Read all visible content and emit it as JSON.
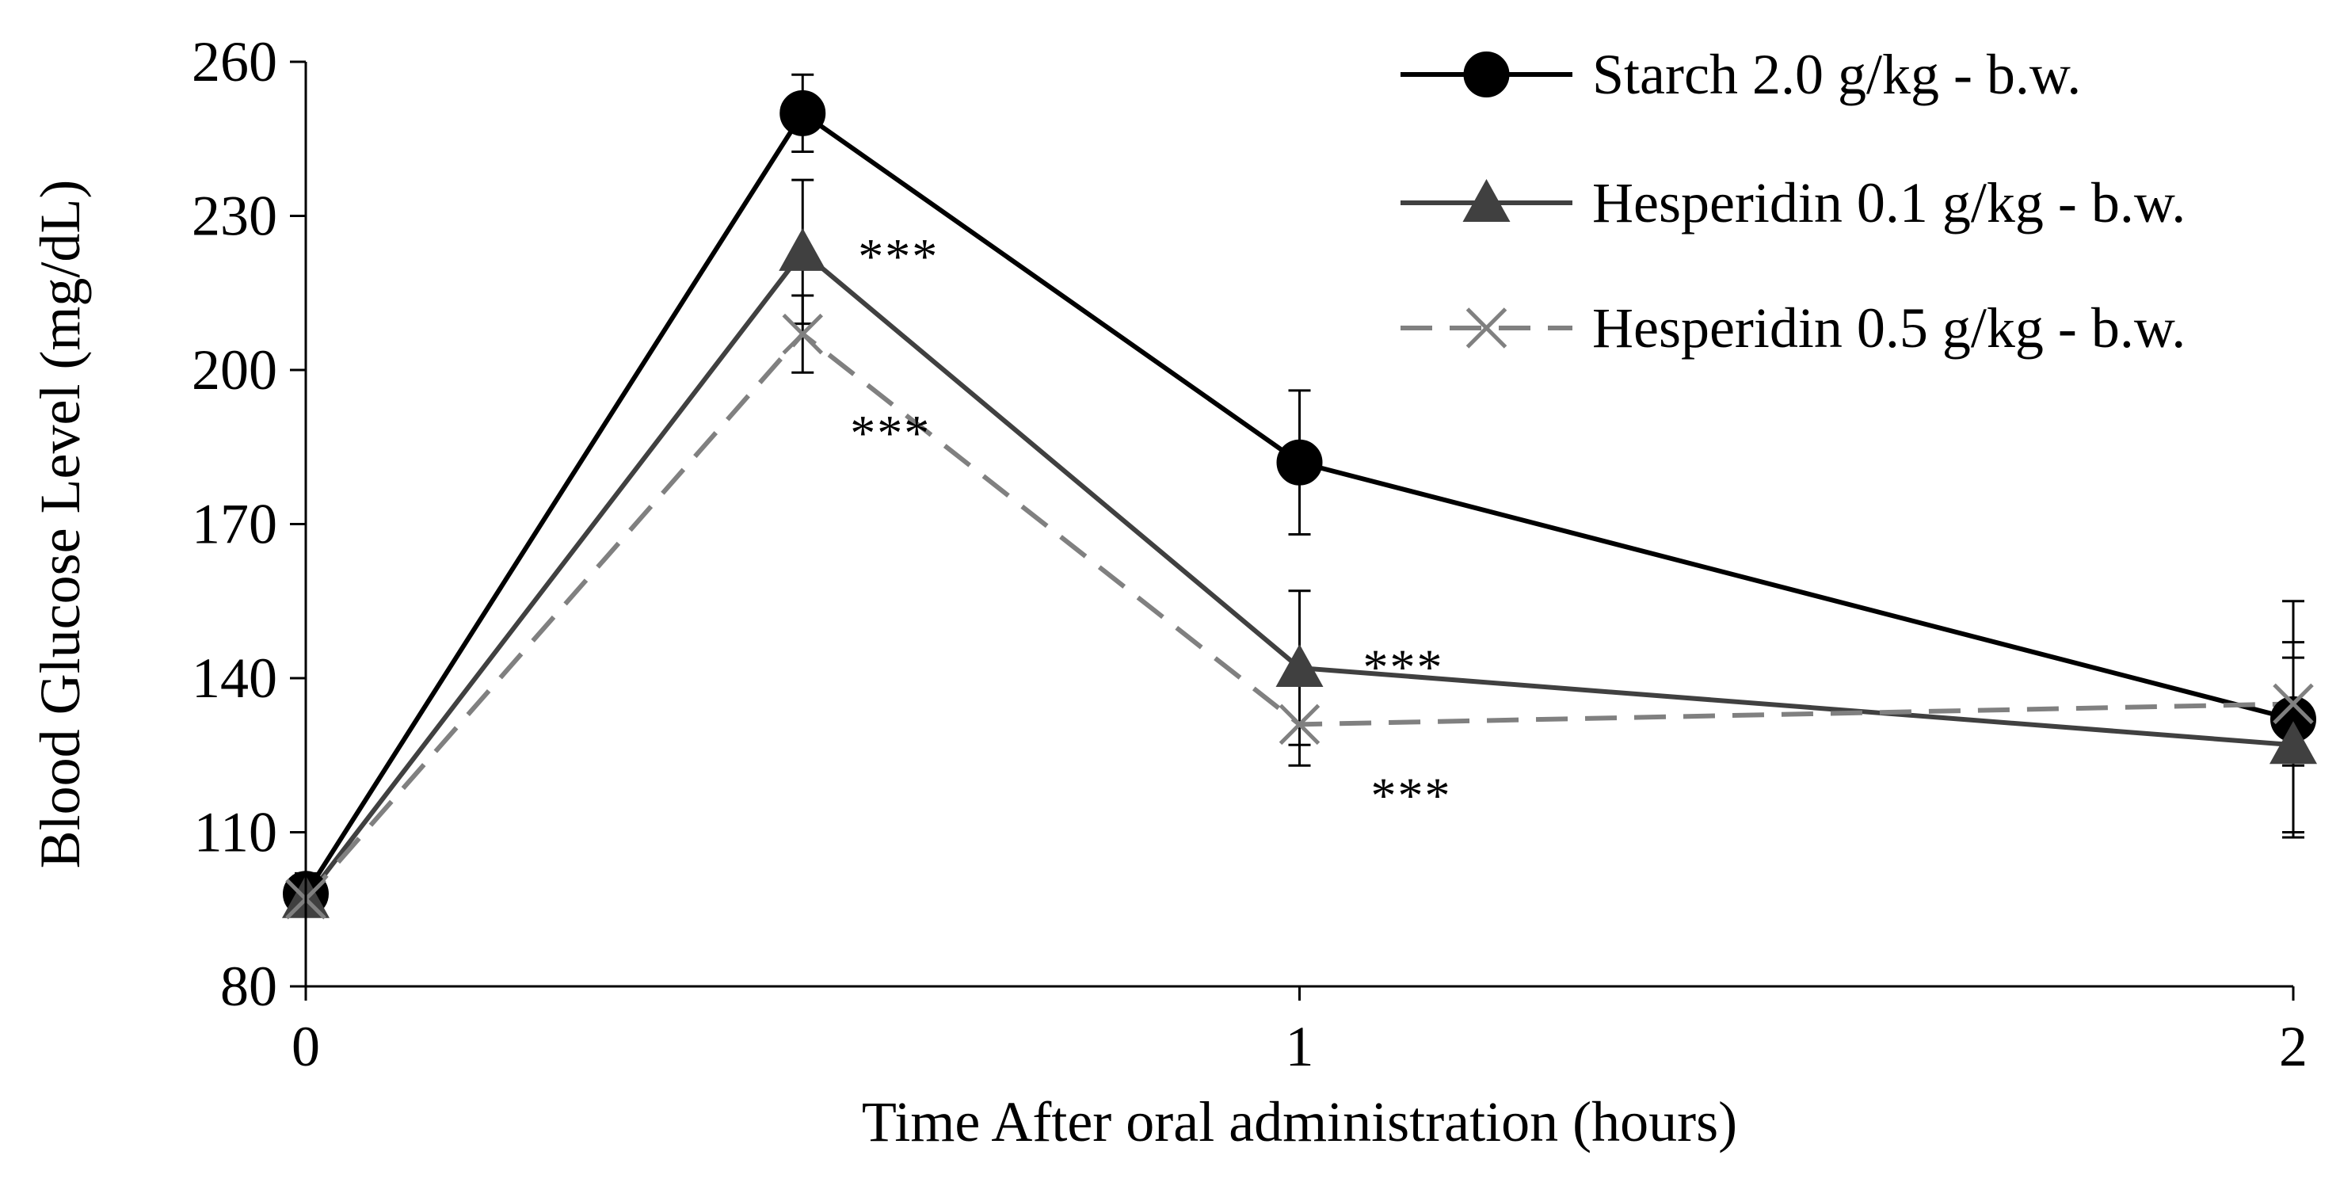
{
  "chart_data": {
    "type": "line",
    "title": "",
    "xlabel": "Time After oral administration (hours)",
    "ylabel": "Blood Glucose Level (mg/dL)",
    "xlim": [
      0,
      2
    ],
    "ylim": [
      80,
      260
    ],
    "x_ticks": [
      0,
      1,
      2
    ],
    "x_tick_labels": [
      "0",
      "1",
      "2"
    ],
    "y_ticks": [
      80,
      110,
      140,
      170,
      200,
      230,
      260
    ],
    "y_tick_labels": [
      "80",
      "110",
      "140",
      "170",
      "200",
      "230",
      "260"
    ],
    "grid": false,
    "legend_position": "top-right",
    "x": [
      0,
      0.5,
      1,
      2
    ],
    "series": [
      {
        "name": "Starch 2.0 g/kg - b.w.",
        "marker": "circle",
        "color": "#000000",
        "dash": "solid",
        "values": [
          98,
          250,
          182,
          132
        ],
        "error": [
          4,
          7.5,
          14,
          23
        ]
      },
      {
        "name": "Hesperidin 0.1 g/kg - b.w.",
        "marker": "triangle",
        "color": "#404040",
        "dash": "solid",
        "values": [
          97,
          223,
          142,
          127
        ],
        "error": [
          3,
          14,
          15,
          17
        ]
      },
      {
        "name": "Hesperidin 0.5 g/kg - b.w.",
        "marker": "x",
        "color": "#808080",
        "dash": "dashed",
        "values": [
          97,
          207,
          131,
          135
        ],
        "error": [
          3,
          7.5,
          8,
          12
        ]
      }
    ],
    "annotations": [
      {
        "text": "***",
        "x": 0.5,
        "y": 225
      },
      {
        "text": "***",
        "x": 0.5,
        "y": 186
      },
      {
        "text": "***",
        "x": 1,
        "y": 145
      },
      {
        "text": "***",
        "x": 1,
        "y": 120
      }
    ]
  }
}
